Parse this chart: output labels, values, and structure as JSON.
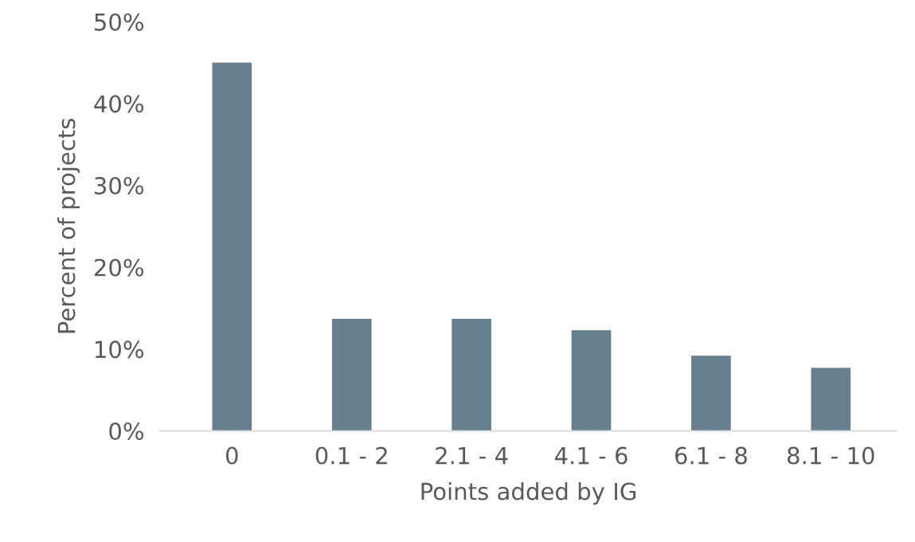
{
  "chart_data": {
    "type": "bar",
    "xlabel": "Points added by IG",
    "ylabel": "Percent of projects",
    "categories": [
      "0",
      "0.1 - 2",
      "2.1 - 4",
      "4.1 - 6",
      "6.1 - 8",
      "8.1 - 10"
    ],
    "values": [
      45,
      13.7,
      13.7,
      12.3,
      9.2,
      7.7
    ],
    "color": "#687f8e",
    "ylim": [
      0,
      50
    ],
    "yticks": [
      {
        "value": 0,
        "label": "0%"
      },
      {
        "value": 10,
        "label": "10%"
      },
      {
        "value": 20,
        "label": "20%"
      },
      {
        "value": 30,
        "label": "30%"
      },
      {
        "value": 40,
        "label": "40%"
      },
      {
        "value": 50,
        "label": "50%"
      }
    ],
    "grid": false,
    "legend": false
  }
}
